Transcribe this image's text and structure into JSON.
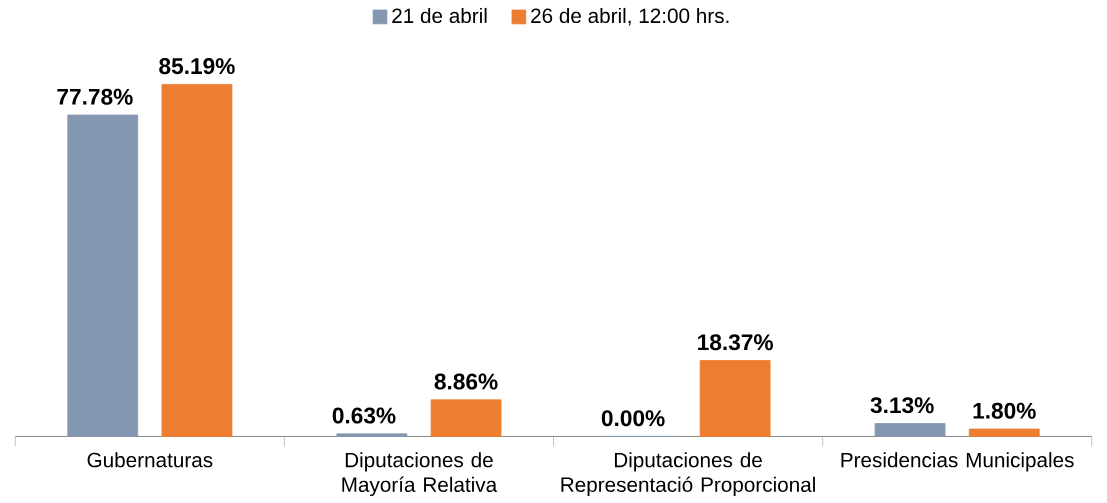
{
  "chart_data": {
    "type": "bar",
    "categories": [
      "Gubernaturas",
      "Diputaciones de Mayoría Relativa",
      "Diputaciones de Representació Proporcional",
      "Presidencias Municipales"
    ],
    "series": [
      {
        "name": "21 de abril",
        "color": "#8497b0",
        "values": [
          77.78,
          0.63,
          0.0,
          3.13
        ],
        "value_labels": [
          "77.78%",
          "0.63%",
          "0.00%",
          "3.13%"
        ]
      },
      {
        "name": "26 de abril, 12:00 hrs.",
        "color": "#ed7d31",
        "values": [
          85.19,
          8.86,
          18.37,
          1.8
        ],
        "value_labels": [
          "85.19%",
          "8.86%",
          "18.37%",
          "1.80%"
        ]
      }
    ],
    "legend": "top"
  }
}
